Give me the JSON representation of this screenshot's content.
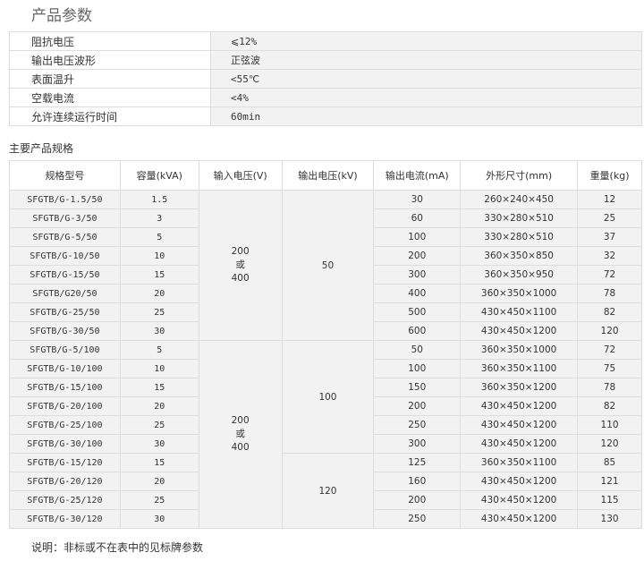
{
  "title": "产品参数",
  "params": [
    {
      "k": "阻抗电压",
      "v": "⩽12%"
    },
    {
      "k": "输出电压波形",
      "v": "正弦波"
    },
    {
      "k": "表面温升",
      "v": "<55℃"
    },
    {
      "k": "空载电流",
      "v": "<4%"
    },
    {
      "k": "允许连续运行时间",
      "v": "60min"
    }
  ],
  "spec_title": "主要产品规格",
  "spec": {
    "headers": [
      "规格型号",
      "容量(kVA)",
      "输入电压(V)",
      "输出电压(kV)",
      "输出电流(mA)",
      "外形尺寸(mm)",
      "重量(kg)"
    ],
    "input_groups": [
      {
        "text": "200\n或\n400",
        "rows": 8
      },
      {
        "text": "200\n或\n400",
        "rows": 10
      }
    ],
    "output_groups": [
      {
        "text": "50",
        "rows": 8
      },
      {
        "text": "100",
        "rows": 6
      },
      {
        "text": "120",
        "rows": 4
      }
    ],
    "rows": [
      [
        "SFGTB/G-1.5/50",
        "1.5",
        "30",
        "260×240×450",
        "12"
      ],
      [
        "SFGTB/G-3/50",
        "3",
        "60",
        "330×280×510",
        "25"
      ],
      [
        "SFGTB/G-5/50",
        "5",
        "100",
        "330×280×510",
        "37"
      ],
      [
        "SFGTB/G-10/50",
        "10",
        "200",
        "360×350×850",
        "32"
      ],
      [
        "SFGTB/G-15/50",
        "15",
        "300",
        "360×350×950",
        "72"
      ],
      [
        "SFGTB/G20/50",
        "20",
        "400",
        "360×350×1000",
        "78"
      ],
      [
        "SFGTB/G-25/50",
        "25",
        "500",
        "430×450×1100",
        "82"
      ],
      [
        "SFGTB/G-30/50",
        "30",
        "600",
        "430×450×1200",
        "120"
      ],
      [
        "SFGTB/G-5/100",
        "5",
        "50",
        "360×350×1000",
        "72"
      ],
      [
        "SFGTB/G-10/100",
        "10",
        "100",
        "360×350×1100",
        "75"
      ],
      [
        "SFGTB/G-15/100",
        "15",
        "150",
        "360×350×1200",
        "78"
      ],
      [
        "SFGTB/G-20/100",
        "20",
        "200",
        "430×450×1200",
        "82"
      ],
      [
        "SFGTB/G-25/100",
        "25",
        "250",
        "430×450×1200",
        "110"
      ],
      [
        "SFGTB/G-30/100",
        "30",
        "300",
        "430×450×1200",
        "120"
      ],
      [
        "SFGTB/G-15/120",
        "15",
        "125",
        "360×350×1100",
        "85"
      ],
      [
        "SFGTB/G-20/120",
        "20",
        "160",
        "430×450×1200",
        "121"
      ],
      [
        "SFGTB/G-25/120",
        "25",
        "200",
        "430×450×1200",
        "115"
      ],
      [
        "SFGTB/G-30/120",
        "30",
        "250",
        "430×450×1200",
        "130"
      ]
    ]
  },
  "note": "说明：非标或不在表中的见标牌参数"
}
